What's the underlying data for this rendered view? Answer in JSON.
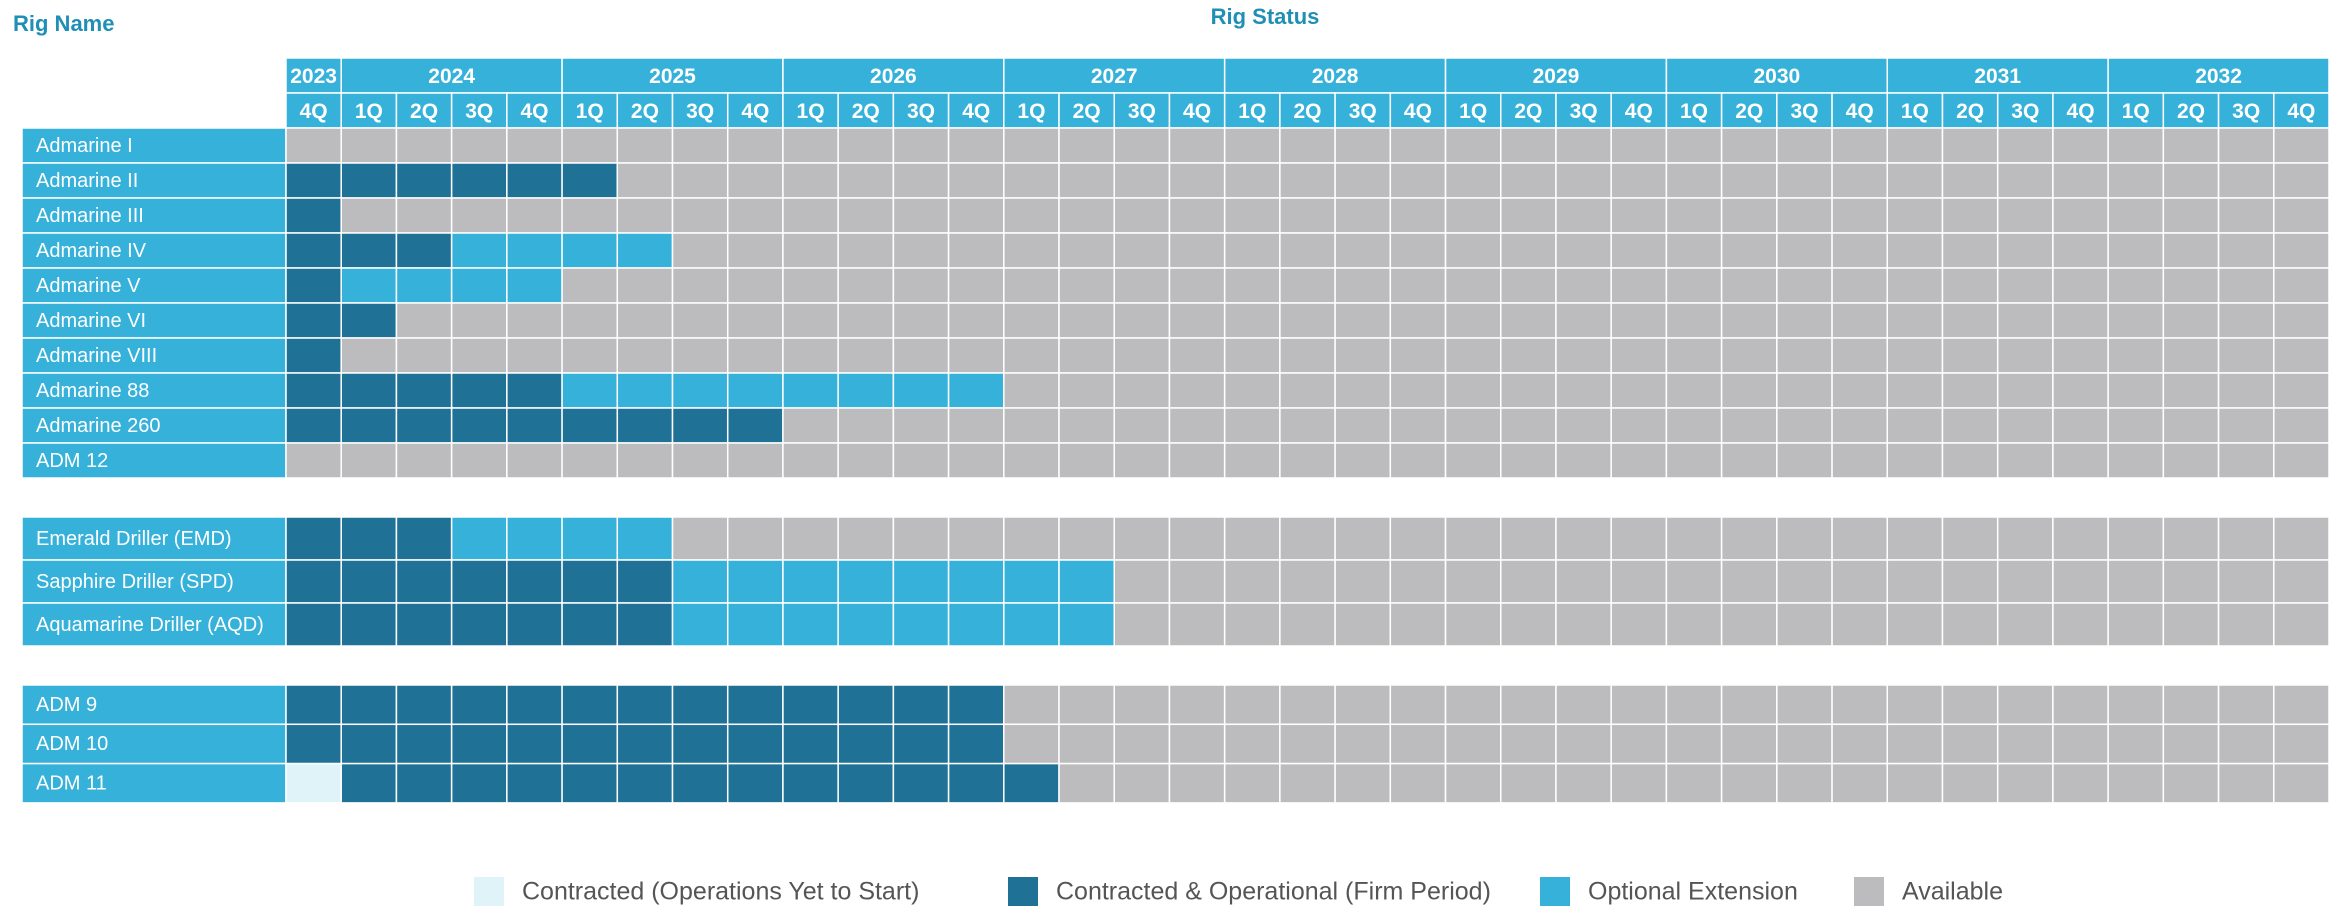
{
  "header": {
    "rig_name_label": "Rig Name",
    "status_label": "Rig Status"
  },
  "years": [
    {
      "label": "2023",
      "quarters": [
        "4Q"
      ]
    },
    {
      "label": "2024",
      "quarters": [
        "1Q",
        "2Q",
        "3Q",
        "4Q"
      ]
    },
    {
      "label": "2025",
      "quarters": [
        "1Q",
        "2Q",
        "3Q",
        "4Q"
      ]
    },
    {
      "label": "2026",
      "quarters": [
        "1Q",
        "2Q",
        "3Q",
        "4Q"
      ]
    },
    {
      "label": "2027",
      "quarters": [
        "1Q",
        "2Q",
        "3Q",
        "4Q"
      ]
    },
    {
      "label": "2028",
      "quarters": [
        "1Q",
        "2Q",
        "3Q",
        "4Q"
      ]
    },
    {
      "label": "2029",
      "quarters": [
        "1Q",
        "2Q",
        "3Q",
        "4Q"
      ]
    },
    {
      "label": "2030",
      "quarters": [
        "1Q",
        "2Q",
        "3Q",
        "4Q"
      ]
    },
    {
      "label": "2031",
      "quarters": [
        "1Q",
        "2Q",
        "3Q",
        "4Q"
      ]
    },
    {
      "label": "2032",
      "quarters": [
        "1Q",
        "2Q",
        "3Q",
        "4Q"
      ]
    }
  ],
  "legend": [
    {
      "label": "Contracted (Operations Yet to Start)",
      "color": "#dff3f9"
    },
    {
      "label": "Contracted & Operational (Firm Period)",
      "color": "#1f7196"
    },
    {
      "label": "Optional Extension",
      "color": "#36b1da"
    },
    {
      "label": "Available",
      "color": "#bcbcbe"
    }
  ],
  "groups": [
    [
      {
        "name": "Admarine I",
        "cells": [
          3,
          3,
          3,
          3,
          3,
          3,
          3,
          3,
          3,
          3,
          3,
          3,
          3,
          3,
          3,
          3,
          3,
          3,
          3,
          3,
          3,
          3,
          3,
          3,
          3,
          3,
          3,
          3,
          3,
          3,
          3,
          3,
          3,
          3,
          3,
          3,
          3
        ]
      },
      {
        "name": "Admarine II",
        "cells": [
          1,
          1,
          1,
          1,
          1,
          1,
          3,
          3,
          3,
          3,
          3,
          3,
          3,
          3,
          3,
          3,
          3,
          3,
          3,
          3,
          3,
          3,
          3,
          3,
          3,
          3,
          3,
          3,
          3,
          3,
          3,
          3,
          3,
          3,
          3,
          3,
          3
        ]
      },
      {
        "name": "Admarine III",
        "cells": [
          1,
          3,
          3,
          3,
          3,
          3,
          3,
          3,
          3,
          3,
          3,
          3,
          3,
          3,
          3,
          3,
          3,
          3,
          3,
          3,
          3,
          3,
          3,
          3,
          3,
          3,
          3,
          3,
          3,
          3,
          3,
          3,
          3,
          3,
          3,
          3,
          3
        ]
      },
      {
        "name": "Admarine IV",
        "cells": [
          1,
          1,
          1,
          2,
          2,
          2,
          2,
          3,
          3,
          3,
          3,
          3,
          3,
          3,
          3,
          3,
          3,
          3,
          3,
          3,
          3,
          3,
          3,
          3,
          3,
          3,
          3,
          3,
          3,
          3,
          3,
          3,
          3,
          3,
          3,
          3,
          3
        ]
      },
      {
        "name": "Admarine V",
        "cells": [
          1,
          2,
          2,
          2,
          2,
          3,
          3,
          3,
          3,
          3,
          3,
          3,
          3,
          3,
          3,
          3,
          3,
          3,
          3,
          3,
          3,
          3,
          3,
          3,
          3,
          3,
          3,
          3,
          3,
          3,
          3,
          3,
          3,
          3,
          3,
          3,
          3
        ]
      },
      {
        "name": "Admarine VI",
        "cells": [
          1,
          1,
          3,
          3,
          3,
          3,
          3,
          3,
          3,
          3,
          3,
          3,
          3,
          3,
          3,
          3,
          3,
          3,
          3,
          3,
          3,
          3,
          3,
          3,
          3,
          3,
          3,
          3,
          3,
          3,
          3,
          3,
          3,
          3,
          3,
          3,
          3
        ]
      },
      {
        "name": "Admarine VIII",
        "cells": [
          1,
          3,
          3,
          3,
          3,
          3,
          3,
          3,
          3,
          3,
          3,
          3,
          3,
          3,
          3,
          3,
          3,
          3,
          3,
          3,
          3,
          3,
          3,
          3,
          3,
          3,
          3,
          3,
          3,
          3,
          3,
          3,
          3,
          3,
          3,
          3,
          3
        ]
      },
      {
        "name": "Admarine 88",
        "cells": [
          1,
          1,
          1,
          1,
          1,
          2,
          2,
          2,
          2,
          2,
          2,
          2,
          2,
          3,
          3,
          3,
          3,
          3,
          3,
          3,
          3,
          3,
          3,
          3,
          3,
          3,
          3,
          3,
          3,
          3,
          3,
          3,
          3,
          3,
          3,
          3,
          3
        ]
      },
      {
        "name": "Admarine 260",
        "cells": [
          1,
          1,
          1,
          1,
          1,
          1,
          1,
          1,
          1,
          3,
          3,
          3,
          3,
          3,
          3,
          3,
          3,
          3,
          3,
          3,
          3,
          3,
          3,
          3,
          3,
          3,
          3,
          3,
          3,
          3,
          3,
          3,
          3,
          3,
          3,
          3,
          3
        ]
      },
      {
        "name": "ADM 12",
        "cells": [
          3,
          3,
          3,
          3,
          3,
          3,
          3,
          3,
          3,
          3,
          3,
          3,
          3,
          3,
          3,
          3,
          3,
          3,
          3,
          3,
          3,
          3,
          3,
          3,
          3,
          3,
          3,
          3,
          3,
          3,
          3,
          3,
          3,
          3,
          3,
          3,
          3
        ]
      }
    ],
    [
      {
        "name": "Emerald Driller (EMD)",
        "cells": [
          1,
          1,
          1,
          2,
          2,
          2,
          2,
          3,
          3,
          3,
          3,
          3,
          3,
          3,
          3,
          3,
          3,
          3,
          3,
          3,
          3,
          3,
          3,
          3,
          3,
          3,
          3,
          3,
          3,
          3,
          3,
          3,
          3,
          3,
          3,
          3,
          3
        ]
      },
      {
        "name": "Sapphire Driller (SPD)",
        "cells": [
          1,
          1,
          1,
          1,
          1,
          1,
          1,
          2,
          2,
          2,
          2,
          2,
          2,
          2,
          2,
          3,
          3,
          3,
          3,
          3,
          3,
          3,
          3,
          3,
          3,
          3,
          3,
          3,
          3,
          3,
          3,
          3,
          3,
          3,
          3,
          3,
          3
        ]
      },
      {
        "name": "Aquamarine Driller (AQD)",
        "cells": [
          1,
          1,
          1,
          1,
          1,
          1,
          1,
          2,
          2,
          2,
          2,
          2,
          2,
          2,
          2,
          3,
          3,
          3,
          3,
          3,
          3,
          3,
          3,
          3,
          3,
          3,
          3,
          3,
          3,
          3,
          3,
          3,
          3,
          3,
          3,
          3,
          3
        ]
      }
    ],
    [
      {
        "name": "ADM 9",
        "cells": [
          1,
          1,
          1,
          1,
          1,
          1,
          1,
          1,
          1,
          1,
          1,
          1,
          1,
          3,
          3,
          3,
          3,
          3,
          3,
          3,
          3,
          3,
          3,
          3,
          3,
          3,
          3,
          3,
          3,
          3,
          3,
          3,
          3,
          3,
          3,
          3,
          3
        ]
      },
      {
        "name": "ADM 10",
        "cells": [
          1,
          1,
          1,
          1,
          1,
          1,
          1,
          1,
          1,
          1,
          1,
          1,
          1,
          3,
          3,
          3,
          3,
          3,
          3,
          3,
          3,
          3,
          3,
          3,
          3,
          3,
          3,
          3,
          3,
          3,
          3,
          3,
          3,
          3,
          3,
          3,
          3
        ]
      },
      {
        "name": "ADM 11",
        "cells": [
          0,
          1,
          1,
          1,
          1,
          1,
          1,
          1,
          1,
          1,
          1,
          1,
          1,
          1,
          3,
          3,
          3,
          3,
          3,
          3,
          3,
          3,
          3,
          3,
          3,
          3,
          3,
          3,
          3,
          3,
          3,
          3,
          3,
          3,
          3,
          3,
          3
        ]
      }
    ]
  ]
}
